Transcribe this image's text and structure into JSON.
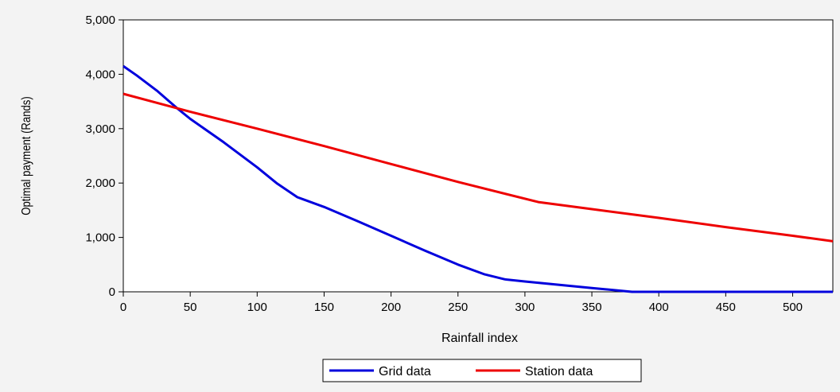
{
  "chart_data": {
    "type": "line",
    "title": "",
    "xlabel": "Rainfall index",
    "ylabel": "Optimal payment (Rands)",
    "xlim": [
      0,
      530
    ],
    "ylim": [
      0,
      5000
    ],
    "x_ticks": [
      0,
      50,
      100,
      150,
      200,
      250,
      300,
      350,
      400,
      450,
      500
    ],
    "x_tick_labels": [
      "0",
      "50",
      "100",
      "150",
      "200",
      "250",
      "300",
      "350",
      "400",
      "450",
      "500"
    ],
    "y_ticks": [
      0,
      1000,
      2000,
      3000,
      4000,
      5000
    ],
    "y_tick_labels": [
      "0",
      "1,000",
      "2,000",
      "3,000",
      "4,000",
      "5,000"
    ],
    "grid": false,
    "legend": "bottom-center",
    "series": [
      {
        "name": "Grid data",
        "color": "#0000dd",
        "x": [
          0,
          10,
          25,
          40,
          50,
          75,
          100,
          115,
          130,
          150,
          175,
          200,
          225,
          250,
          270,
          285,
          300,
          325,
          350,
          380,
          400,
          450,
          500,
          530
        ],
        "y": [
          4150,
          3980,
          3700,
          3380,
          3180,
          2750,
          2290,
          1990,
          1740,
          1560,
          1300,
          1030,
          760,
          500,
          320,
          230,
          190,
          130,
          70,
          0,
          0,
          0,
          0,
          0
        ]
      },
      {
        "name": "Station data",
        "color": "#ee0000",
        "x": [
          0,
          50,
          100,
          150,
          200,
          250,
          310,
          350,
          400,
          450,
          500,
          530
        ],
        "y": [
          3640,
          3310,
          3000,
          2680,
          2350,
          2020,
          1650,
          1520,
          1360,
          1190,
          1030,
          930
        ]
      }
    ]
  }
}
